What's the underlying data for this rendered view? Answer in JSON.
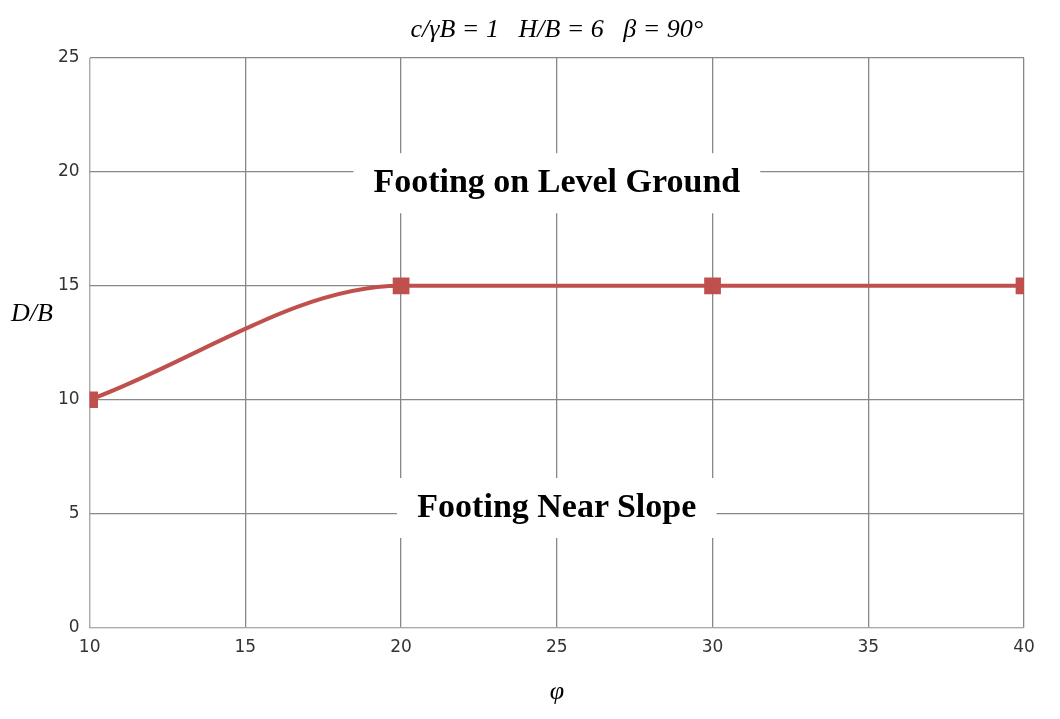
{
  "chart_data": {
    "type": "line",
    "title": "c/γB = 1   H/B = 6   β = 90°",
    "xlabel": "φ",
    "ylabel": "D/B",
    "x": [
      10,
      20,
      30,
      40
    ],
    "series": [
      {
        "color": "#c0504d",
        "values": [
          10,
          15,
          15,
          15
        ]
      }
    ],
    "xlim": [
      10,
      40
    ],
    "xticks": [
      10,
      15,
      20,
      25,
      30,
      35,
      40
    ],
    "ylim": [
      0,
      25
    ],
    "yticks": [
      0,
      5,
      10,
      15,
      20,
      25
    ],
    "grid": true,
    "legend": false,
    "marker": "square",
    "line_style": "solid",
    "annotations": [
      "Footing on Level Ground",
      "Footing Near Slope"
    ]
  }
}
